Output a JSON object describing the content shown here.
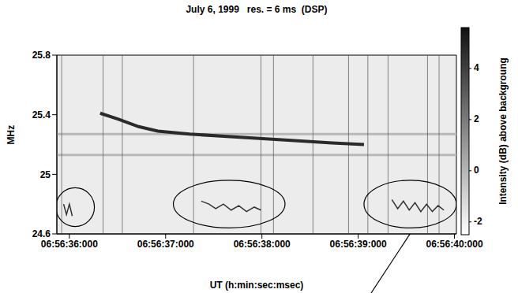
{
  "chart_data": {
    "type": "dynamic_spectrum",
    "title": "July 6, 1999   res. = 6 ms  (DSP)",
    "x_label": "UT (h:min:sec:msec)",
    "y_label": "MHz",
    "xlim": [
      35.87,
      40.02
    ],
    "xticks": [
      {
        "value": 36,
        "label": "06:56:36:000"
      },
      {
        "value": 37,
        "label": "06:56:37:000"
      },
      {
        "value": 38,
        "label": "06:56:38:000"
      },
      {
        "value": 39,
        "label": "06:56:39:000"
      },
      {
        "value": 40,
        "label": "06:56:40:000"
      }
    ],
    "ylim": [
      24.6,
      25.8
    ],
    "yticks": [
      24.6,
      25,
      25.4,
      25.8
    ],
    "burst": {
      "color": "#2a2a2a",
      "x": [
        36.32,
        36.51,
        36.72,
        36.92,
        37.25,
        37.74,
        38.24,
        38.73,
        39.06
      ],
      "y": [
        25.41,
        25.37,
        25.32,
        25.29,
        25.27,
        25.25,
        25.23,
        25.21,
        25.2
      ]
    },
    "interference": {
      "color": "#b8b8b8",
      "frequencies": [
        25.27,
        25.13
      ],
      "times": [
        35.92,
        36.35,
        36.55,
        37.29,
        37.99,
        38.12,
        38.53,
        38.9,
        39.1,
        39.31,
        39.72,
        39.84
      ]
    },
    "highlights": [
      {
        "x": 36.06,
        "y": 24.78,
        "x_radius": 0.2,
        "y_radius": 0.13,
        "wave": {
          "x": [
            35.94,
            35.97,
            36.0,
            36.03
          ],
          "y": [
            24.8,
            24.73,
            24.8,
            24.72
          ]
        }
      },
      {
        "x": 37.66,
        "y": 24.8,
        "x_radius": 0.58,
        "y_radius": 0.16,
        "wave": {
          "x": [
            37.37,
            37.45,
            37.52,
            37.6,
            37.68,
            37.76,
            37.84,
            37.92,
            37.99
          ],
          "y": [
            24.82,
            24.8,
            24.77,
            24.8,
            24.76,
            24.79,
            24.75,
            24.78,
            24.76
          ]
        }
      },
      {
        "x": 39.54,
        "y": 24.8,
        "x_radius": 0.48,
        "y_radius": 0.16,
        "wave": {
          "x": [
            39.35,
            39.41,
            39.47,
            39.53,
            39.59,
            39.65,
            39.71,
            39.77,
            39.83,
            39.89
          ],
          "y": [
            24.83,
            24.77,
            24.82,
            24.76,
            24.81,
            24.75,
            24.8,
            24.75,
            24.79,
            24.76
          ]
        }
      }
    ],
    "colorbar": {
      "label": "Intensity (dB) above backgroung",
      "lim": [
        -2.5,
        5.6
      ],
      "ticks": [
        -2,
        0,
        2,
        4
      ]
    }
  }
}
